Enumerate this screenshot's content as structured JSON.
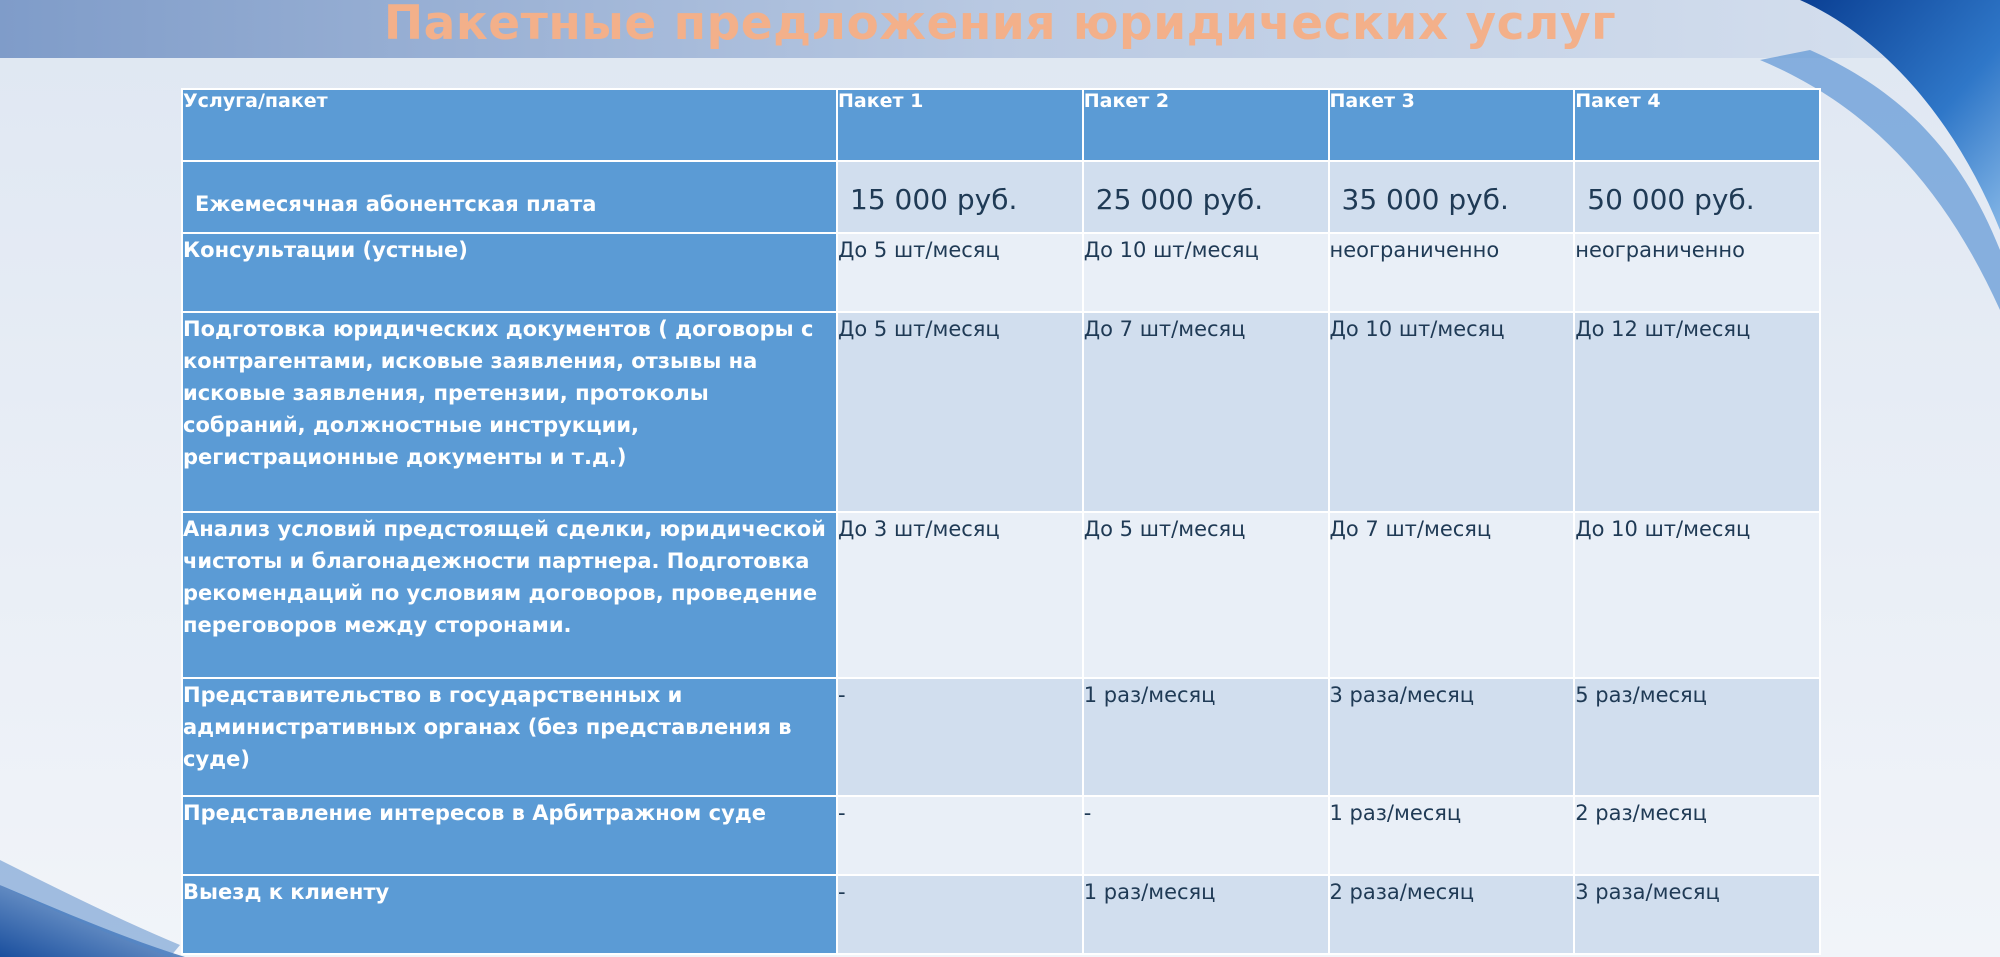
{
  "title": "Пакетные предложения юридических услуг",
  "colors": {
    "header_fill": "#5b9bd5",
    "row_light": "#e9eff7",
    "row_dark": "#d1deee",
    "title_color": "#f3b08a"
  },
  "table": {
    "headers": [
      "Услуга/пакет",
      "Пакет 1",
      "Пакет 2",
      "Пакет 3",
      "Пакет 4"
    ],
    "rows": [
      {
        "service": "Ежемесячная абонентская плата",
        "values": [
          "15 000 руб.",
          "25 000 руб.",
          "35 000 руб.",
          "50 000 руб."
        ]
      },
      {
        "service": "Консультации (устные)",
        "values": [
          "До 5 шт/месяц",
          "До 10 шт/месяц",
          "неограниченно",
          "неограниченно"
        ]
      },
      {
        "service": "Подготовка юридических документов ( договоры с контрагентами, исковые заявления, отзывы на исковые заявления, претензии, протоколы собраний, должностные инструкции, регистрационные документы и т.д.)",
        "values": [
          "До 5 шт/месяц",
          "До 7 шт/месяц",
          "До 10 шт/месяц",
          "До 12 шт/месяц"
        ]
      },
      {
        "service": "Анализ условий предстоящей сделки, юридической чистоты и благонадежности партнера. Подготовка рекомендаций по условиям договоров, проведение переговоров между сторонами.",
        "values": [
          "До 3 шт/месяц",
          "До 5 шт/месяц",
          "До 7 шт/месяц",
          "До 10 шт/месяц"
        ]
      },
      {
        "service": "Представительство в государственных и административных органах (без представления в суде)",
        "values": [
          "-",
          "1 раз/месяц",
          "3 раза/месяц",
          "5 раз/месяц"
        ]
      },
      {
        "service": "Представление интересов в Арбитражном суде",
        "values": [
          "-",
          "-",
          "1 раз/месяц",
          "2 раз/месяц"
        ]
      },
      {
        "service": "Выезд к клиенту",
        "values": [
          "-",
          "1 раз/месяц",
          "2 раза/месяц",
          "3 раза/месяц"
        ]
      }
    ]
  }
}
